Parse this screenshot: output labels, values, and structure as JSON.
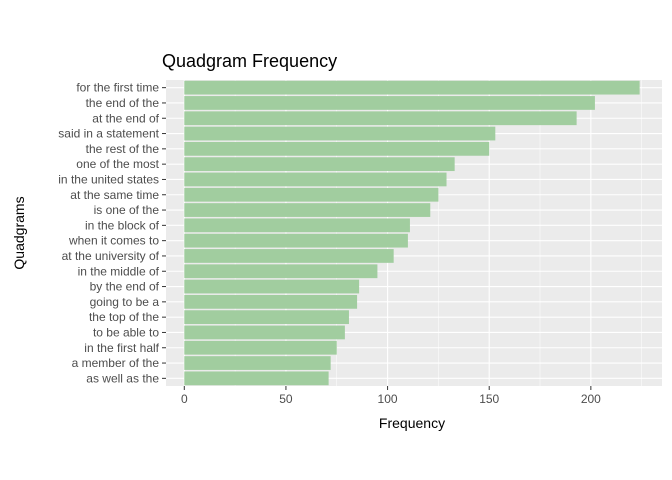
{
  "chart_data": {
    "type": "bar",
    "orientation": "horizontal",
    "title": "Quadgram Frequency",
    "xlabel": "Frequency",
    "ylabel": "Quadgrams",
    "categories": [
      "for the first time",
      "the end of the",
      "at the end of",
      "said in a statement",
      "the rest of the",
      "one of the most",
      "in the united states",
      "at the same time",
      "is one of the",
      "in the block of",
      "when it comes to",
      "at the university of",
      "in the middle of",
      "by the end of",
      "going to be a",
      "the top of the",
      "to be able to",
      "in the first half",
      "a member of the",
      "as well as the"
    ],
    "values": [
      224,
      202,
      193,
      153,
      150,
      133,
      129,
      125,
      121,
      111,
      110,
      103,
      95,
      86,
      85,
      81,
      79,
      75,
      72,
      71
    ],
    "xlim": [
      -9,
      235
    ],
    "xticks": [
      0,
      50,
      100,
      150,
      200
    ],
    "xtick_labels": [
      "0",
      "50",
      "100",
      "150",
      "200"
    ],
    "grid": true,
    "legend": "none",
    "colors": {
      "bar": "#a1cd9f",
      "panel": "#ebebeb",
      "grid": "#ffffff",
      "text": "#4d4d4d"
    }
  }
}
